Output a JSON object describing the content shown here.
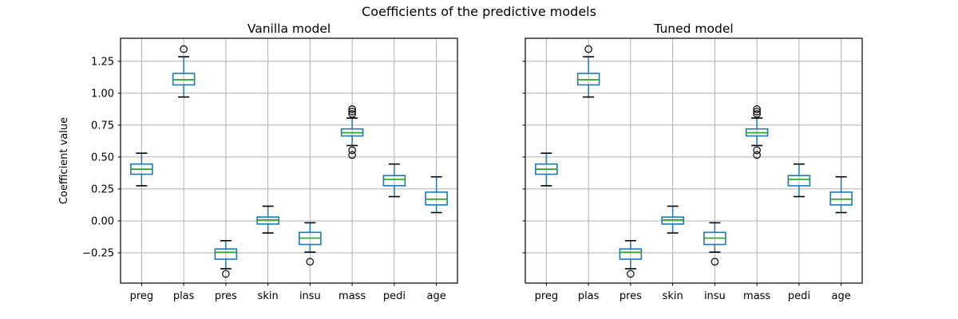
{
  "figure": {
    "suptitle": "Coefficients of the predictive models",
    "background": "#ffffff"
  },
  "colors": {
    "box": "#1f77b4",
    "whisker": "#1f77b4",
    "median": "#2ca02c",
    "cap": "#000000",
    "flier": "#000000",
    "grid": "#b0b0b0",
    "spine": "#000000",
    "text": "#000000"
  },
  "chart_data": [
    {
      "type": "boxplot",
      "title": "Vanilla model",
      "ylabel": "Coefficient value",
      "categories": [
        "preg",
        "plas",
        "pres",
        "skin",
        "insu",
        "mass",
        "pedi",
        "age"
      ],
      "ylim": [
        -0.4875,
        1.43
      ],
      "yticks": [
        -0.25,
        0.0,
        0.25,
        0.5,
        0.75,
        1.0,
        1.25
      ],
      "ytick_labels": [
        "−0.25",
        "0.00",
        "0.25",
        "0.50",
        "0.75",
        "1.00",
        "1.25"
      ],
      "grid": true,
      "show_ytick_labels": true,
      "boxes": [
        {
          "label": "preg",
          "whislo": 0.275,
          "q1": 0.365,
          "med": 0.405,
          "q3": 0.445,
          "whishi": 0.53,
          "fliers": []
        },
        {
          "label": "plas",
          "whislo": 0.97,
          "q1": 1.065,
          "med": 1.105,
          "q3": 1.155,
          "whishi": 1.285,
          "fliers": [
            1.345
          ]
        },
        {
          "label": "pres",
          "whislo": -0.375,
          "q1": -0.3,
          "med": -0.246,
          "q3": -0.22,
          "whishi": -0.155,
          "fliers": [
            -0.415
          ]
        },
        {
          "label": "skin",
          "whislo": -0.095,
          "q1": -0.025,
          "med": 0.007,
          "q3": 0.03,
          "whishi": 0.115,
          "fliers": []
        },
        {
          "label": "insu",
          "whislo": -0.245,
          "q1": -0.185,
          "med": -0.135,
          "q3": -0.09,
          "whishi": -0.015,
          "fliers": [
            -0.32
          ]
        },
        {
          "label": "mass",
          "whislo": 0.59,
          "q1": 0.665,
          "med": 0.69,
          "q3": 0.72,
          "whishi": 0.805,
          "fliers": [
            0.875,
            0.856,
            0.837,
            0.553,
            0.516
          ]
        },
        {
          "label": "pedi",
          "whislo": 0.19,
          "q1": 0.275,
          "med": 0.325,
          "q3": 0.355,
          "whishi": 0.445,
          "fliers": []
        },
        {
          "label": "age",
          "whislo": 0.065,
          "q1": 0.125,
          "med": 0.17,
          "q3": 0.225,
          "whishi": 0.345,
          "fliers": []
        }
      ]
    },
    {
      "type": "boxplot",
      "title": "Tuned model",
      "ylabel": "",
      "categories": [
        "preg",
        "plas",
        "pres",
        "skin",
        "insu",
        "mass",
        "pedi",
        "age"
      ],
      "ylim": [
        -0.4875,
        1.43
      ],
      "yticks": [
        -0.25,
        0.0,
        0.25,
        0.5,
        0.75,
        1.0,
        1.25
      ],
      "ytick_labels": [
        "−0.25",
        "0.00",
        "0.25",
        "0.50",
        "0.75",
        "1.00",
        "1.25"
      ],
      "grid": true,
      "show_ytick_labels": false,
      "boxes": [
        {
          "label": "preg",
          "whislo": 0.275,
          "q1": 0.365,
          "med": 0.405,
          "q3": 0.445,
          "whishi": 0.53,
          "fliers": []
        },
        {
          "label": "plas",
          "whislo": 0.97,
          "q1": 1.065,
          "med": 1.105,
          "q3": 1.155,
          "whishi": 1.285,
          "fliers": [
            1.345
          ]
        },
        {
          "label": "pres",
          "whislo": -0.375,
          "q1": -0.3,
          "med": -0.246,
          "q3": -0.22,
          "whishi": -0.155,
          "fliers": [
            -0.415
          ]
        },
        {
          "label": "skin",
          "whislo": -0.095,
          "q1": -0.025,
          "med": 0.007,
          "q3": 0.03,
          "whishi": 0.115,
          "fliers": []
        },
        {
          "label": "insu",
          "whislo": -0.245,
          "q1": -0.185,
          "med": -0.135,
          "q3": -0.09,
          "whishi": -0.015,
          "fliers": [
            -0.32
          ]
        },
        {
          "label": "mass",
          "whislo": 0.59,
          "q1": 0.665,
          "med": 0.69,
          "q3": 0.72,
          "whishi": 0.805,
          "fliers": [
            0.875,
            0.856,
            0.837,
            0.553,
            0.516
          ]
        },
        {
          "label": "pedi",
          "whislo": 0.19,
          "q1": 0.275,
          "med": 0.325,
          "q3": 0.355,
          "whishi": 0.445,
          "fliers": []
        },
        {
          "label": "age",
          "whislo": 0.065,
          "q1": 0.125,
          "med": 0.17,
          "q3": 0.225,
          "whishi": 0.345,
          "fliers": []
        }
      ]
    }
  ]
}
